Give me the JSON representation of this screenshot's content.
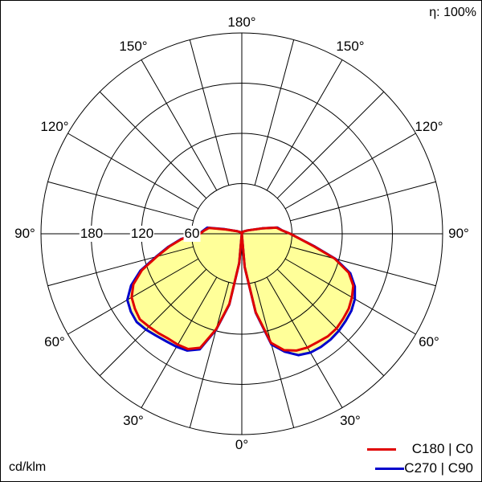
{
  "chart_data": {
    "type": "polar",
    "title": "",
    "efficiency_label": "η: 100%",
    "unit_label": "cd/klm",
    "radial_ticks": [
      60,
      120,
      180,
      240
    ],
    "radial_tick_labels": [
      "60",
      "120",
      "180"
    ],
    "angle_labels": {
      "top": "180°",
      "upper": "150°",
      "upper_mid": "120°",
      "side": "90°",
      "lower_mid": "60°",
      "lower": "30°",
      "bottom": "0°"
    },
    "rmax": 240,
    "fill_color": "#ffff99",
    "gamma": [
      0,
      5,
      10,
      15,
      20,
      25,
      30,
      35,
      40,
      45,
      50,
      55,
      60,
      65,
      70,
      75,
      80,
      85,
      90,
      95,
      100,
      105,
      120,
      150,
      180
    ],
    "series": [
      {
        "name": "C180 | C0",
        "color": "#e00000",
        "side_right": "C0",
        "side_left": "C180",
        "right": [
          0,
          40,
          95,
          135,
          148,
          154,
          157,
          158,
          160,
          160,
          158,
          156,
          152,
          147,
          136,
          115,
          88,
          70,
          58,
          48,
          42,
          25,
          8,
          3,
          0
        ],
        "left": [
          0,
          35,
          85,
          118,
          145,
          152,
          153,
          153,
          155,
          157,
          159,
          156,
          152,
          143,
          127,
          105,
          88,
          72,
          50,
          45,
          40,
          20,
          6,
          2,
          0
        ]
      },
      {
        "name": "C270 | C90",
        "color": "#0000cc",
        "right": [
          0,
          40,
          96,
          137,
          150,
          160,
          164,
          165,
          165,
          164,
          162,
          160,
          156,
          149,
          138,
          116,
          89,
          70,
          58,
          48,
          43,
          25,
          8,
          3,
          0
        ],
        "left": [
          0,
          35,
          86,
          119,
          147,
          154,
          156,
          157,
          159,
          162,
          164,
          162,
          158,
          146,
          129,
          106,
          89,
          73,
          51,
          46,
          42,
          21,
          6,
          2,
          0
        ]
      }
    ]
  }
}
